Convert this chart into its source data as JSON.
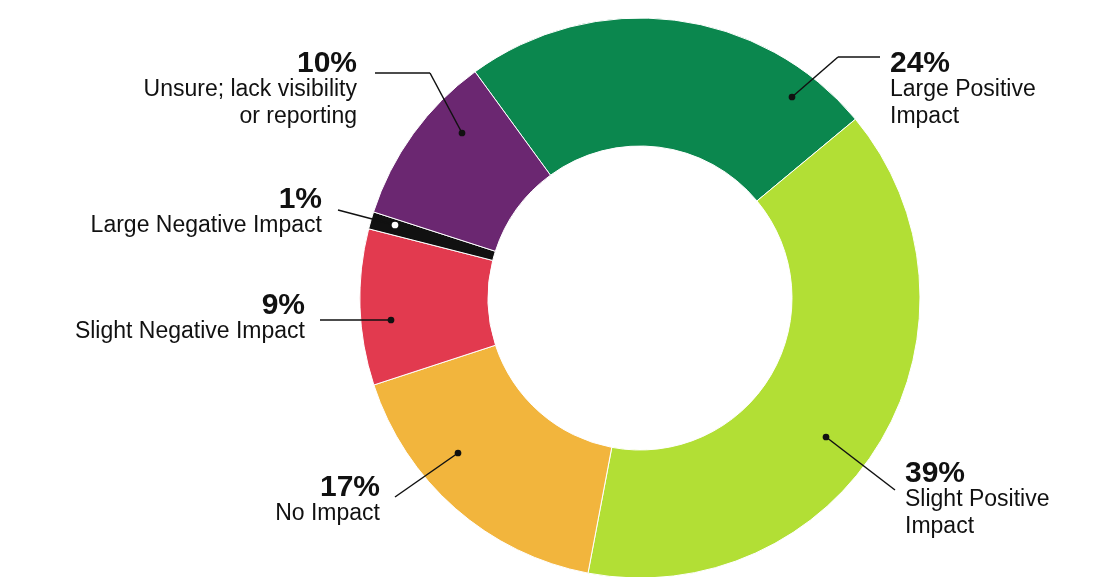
{
  "chart_data": {
    "type": "donut",
    "categories": [
      "Large Positive Impact",
      "Slight Positive Impact",
      "No Impact",
      "Slight Negative Impact",
      "Large Negative Impact",
      "Unsure; lack visibility or reporting"
    ],
    "values": [
      24,
      39,
      17,
      9,
      1,
      10
    ],
    "value_labels": [
      "24%",
      "39%",
      "17%",
      "9%",
      "1%",
      "10%"
    ],
    "colors": [
      "#0b874e",
      "#b2df35",
      "#f2b53d",
      "#e23a4f",
      "#111111",
      "#6b2771"
    ]
  }
}
